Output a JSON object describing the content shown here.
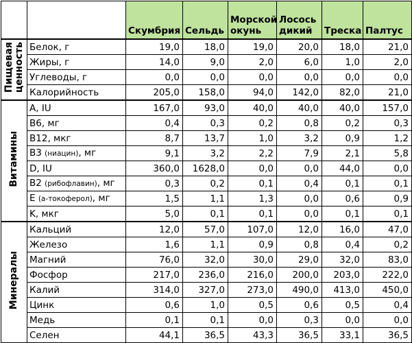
{
  "columns": [
    "Скумбрия",
    "Сельдь",
    "Морской окунь",
    "Лосось дикий",
    "Треска",
    "Палтус"
  ],
  "groups": [
    {
      "label": "Пищевая ценность",
      "label_lines": "Пищевая\nценность",
      "rows": [
        {
          "label": "Белок, г",
          "values": [
            "19,0",
            "18,0",
            "19,0",
            "20,0",
            "18,0",
            "21,0"
          ]
        },
        {
          "label": "Жиры, г",
          "values": [
            "14,0",
            "9,0",
            "2,0",
            "6,0",
            "1,0",
            "2,0"
          ]
        },
        {
          "label": "Углеводы, г",
          "values": [
            "0,0",
            "0,0",
            "0,0",
            "0,0",
            "0,0",
            "0,0"
          ]
        },
        {
          "label": "Калорийность",
          "values": [
            "205,0",
            "158,0",
            "94,0",
            "142,0",
            "82,0",
            "21,0"
          ]
        }
      ]
    },
    {
      "label": "Витамины",
      "label_lines": "Витамины",
      "rows": [
        {
          "label": "A, IU",
          "values": [
            "167,0",
            "93,0",
            "40,0",
            "40,0",
            "40,0",
            "157,0"
          ]
        },
        {
          "label": "B6, мг",
          "values": [
            "0,4",
            "0,3",
            "0,2",
            "0,8",
            "0,2",
            "0,3"
          ]
        },
        {
          "label": "B12, мкг",
          "values": [
            "8,7",
            "13,7",
            "1,0",
            "3,2",
            "0,9",
            "1,2"
          ]
        },
        {
          "label": "B3",
          "note": "(ниацин)",
          "unit": ", мг",
          "values": [
            "9,1",
            "3,2",
            "2,2",
            "7,9",
            "2,1",
            "5,8"
          ]
        },
        {
          "label": "D, IU",
          "values": [
            "360,0",
            "1628,0",
            "0,0",
            "0,0",
            "44,0",
            "0,0"
          ]
        },
        {
          "label": "B2",
          "note": "(рибофлавин)",
          "unit": ", мг",
          "values": [
            "0,3",
            "0,2",
            "0,1",
            "0,4",
            "0,1",
            "0,1"
          ]
        },
        {
          "label": "E",
          "note": "(a-токоферол)",
          "unit": ", мг",
          "values": [
            "1,5",
            "1,1",
            "1,3",
            "0,0",
            "0,6",
            "0,9"
          ]
        },
        {
          "label": "K, мкг",
          "values": [
            "5,0",
            "0,1",
            "0,1",
            "0,0",
            "0,1",
            "0,1"
          ]
        }
      ]
    },
    {
      "label": "Минералы",
      "label_lines": "Минералы",
      "rows": [
        {
          "label": "Кальций",
          "values": [
            "12,0",
            "57,0",
            "107,0",
            "12,0",
            "16,0",
            "47,0"
          ]
        },
        {
          "label": "Железо",
          "values": [
            "1,6",
            "1,1",
            "0,9",
            "0,8",
            "0,4",
            "0,2"
          ]
        },
        {
          "label": "Магний",
          "values": [
            "76,0",
            "32,0",
            "30,0",
            "29,0",
            "32,0",
            "83,0"
          ]
        },
        {
          "label": "Фосфор",
          "values": [
            "217,0",
            "236,0",
            "216,0",
            "200,0",
            "203,0",
            "222,0"
          ]
        },
        {
          "label": "Калий",
          "values": [
            "314,0",
            "327,0",
            "273,0",
            "490,0",
            "413,0",
            "450,0"
          ]
        },
        {
          "label": "Цинк",
          "values": [
            "0,6",
            "1,0",
            "0,5",
            "0,6",
            "0,5",
            "0,4"
          ]
        },
        {
          "label": "Медь",
          "values": [
            "0,1",
            "0,1",
            "0,0",
            "0,3",
            "0,0",
            "0,0"
          ]
        },
        {
          "label": "Селен",
          "values": [
            "44,1",
            "36,5",
            "43,3",
            "36,5",
            "33,1",
            "36,5"
          ]
        }
      ]
    }
  ],
  "colors": {
    "header_bg": "#bfe29d",
    "border": "#000000"
  }
}
